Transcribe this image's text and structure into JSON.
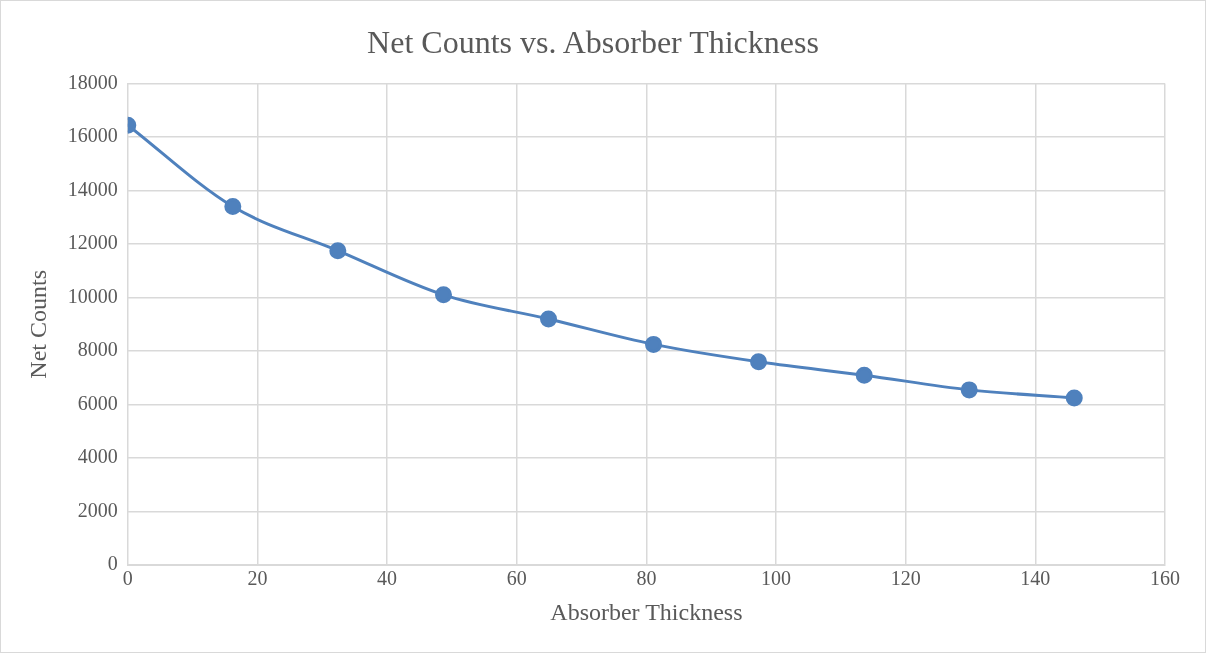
{
  "chart_data": {
    "type": "line",
    "title": "Net Counts vs. Absorber Thickness",
    "xlabel": "Absorber Thickness",
    "ylabel": "Net Counts",
    "x": [
      0,
      16.2,
      32.4,
      48.7,
      64.9,
      81.1,
      97.3,
      113.6,
      129.8,
      146.0
    ],
    "series": [
      {
        "color": "#4f81bd",
        "values": [
          16440,
          13400,
          11750,
          10100,
          9200,
          8250,
          7600,
          7100,
          6550,
          6250
        ]
      }
    ],
    "xlim": [
      0,
      160
    ],
    "xticks": [
      0,
      20,
      40,
      60,
      80,
      100,
      120,
      140,
      160
    ],
    "ylim": [
      0,
      18000
    ],
    "yticks": [
      0,
      2000,
      4000,
      6000,
      8000,
      10000,
      12000,
      14000,
      16000,
      18000
    ],
    "grid": true,
    "legend": false,
    "marker": "circle",
    "line_style": "solid"
  }
}
